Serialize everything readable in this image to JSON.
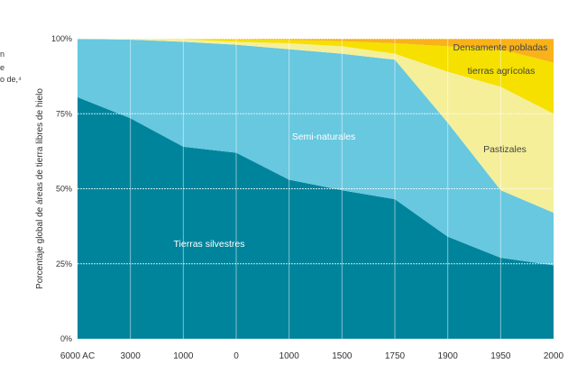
{
  "side_text_fragments": [
    "n",
    "e",
    "o de,⁴"
  ],
  "chart_data": {
    "type": "area",
    "stacked": true,
    "title": "",
    "xlabel": "",
    "ylabel": "Porcentaje global de áreas de tierra libres de hielo",
    "categories": [
      "6000 AC",
      "3000",
      "1000",
      "0",
      "1000",
      "1500",
      "1750",
      "1900",
      "1950",
      "2000"
    ],
    "ylim": [
      0,
      100
    ],
    "yticks": [
      "0%",
      "25%",
      "50%",
      "75%",
      "100%"
    ],
    "grid": true,
    "series": [
      {
        "name": "Tierras silvestres",
        "color": "#00849c",
        "values": [
          80.5,
          73.5,
          64,
          62,
          53,
          49.5,
          46.5,
          34,
          27,
          24.5
        ]
      },
      {
        "name": "Semi-naturales",
        "color": "#67c8df",
        "values": [
          19.5,
          26.2,
          35,
          36,
          43.5,
          45.5,
          46.5,
          38,
          22.5,
          17.5
        ]
      },
      {
        "name": "Pastizales",
        "color": "#f5ef9a",
        "values": [
          0,
          0.3,
          0.8,
          1,
          2,
          2.5,
          2,
          17,
          34.5,
          33
        ]
      },
      {
        "name": "tierras agrícolas",
        "color": "#f5e000",
        "values": [
          0,
          0,
          0.2,
          0.8,
          1.1,
          1.7,
          3.5,
          8.5,
          12.5,
          17
        ]
      },
      {
        "name": "Densamente pobladas",
        "color": "#f9b21a",
        "values": [
          0,
          0,
          0,
          0.2,
          0.4,
          0.8,
          1.5,
          2.5,
          3.5,
          8
        ]
      }
    ]
  }
}
